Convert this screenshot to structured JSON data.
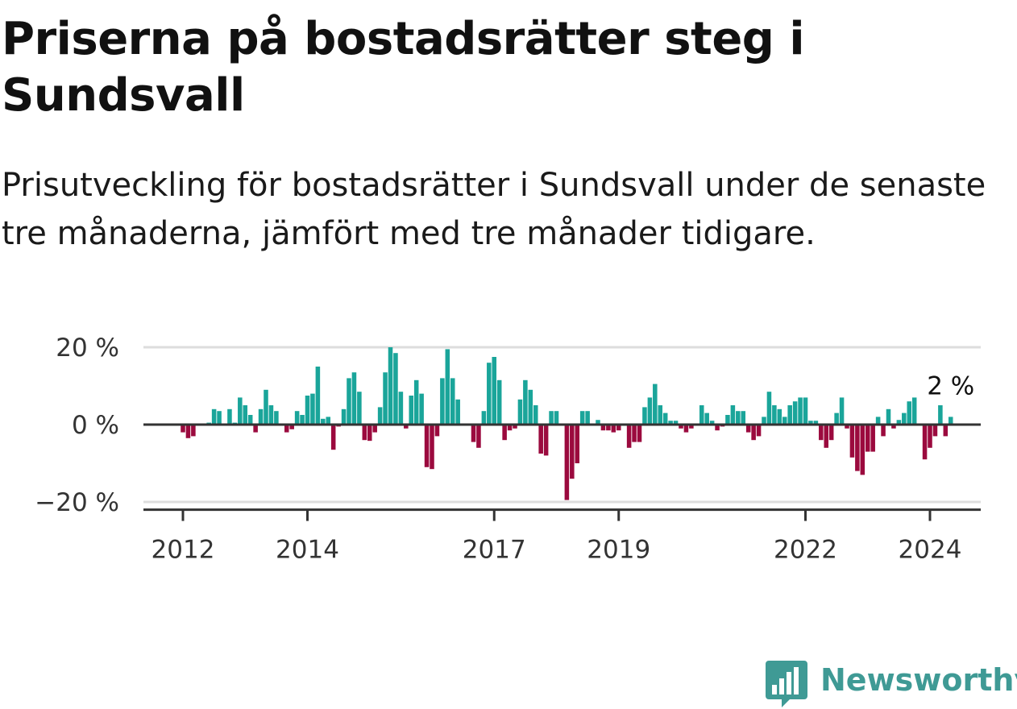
{
  "title": "Priserna på bostadsrätter steg i Sundsvall",
  "subtitle": "Prisutveckling för bostadsrätter i Sundsvall under de senaste tre månaderna, jämfört med tre månader tidigare.",
  "logo": {
    "name": "Newsworthy",
    "icon": "bar-chart-speech-bubble-icon"
  },
  "chart_data": {
    "type": "bar",
    "ylabel": "",
    "xlabel": "",
    "ylim": [
      -22,
      20
    ],
    "yticks": [
      {
        "value": 20,
        "label": "20 %"
      },
      {
        "value": 0,
        "label": "0 %"
      },
      {
        "value": -20,
        "label": "−20 %"
      }
    ],
    "xticks": [
      {
        "value": 2012,
        "label": "2012"
      },
      {
        "value": 2014,
        "label": "2014"
      },
      {
        "value": 2017,
        "label": "2017"
      },
      {
        "value": 2019,
        "label": "2019"
      },
      {
        "value": 2022,
        "label": "2022"
      },
      {
        "value": 2024,
        "label": "2024"
      }
    ],
    "grid": true,
    "colors": {
      "positive": "#1aa59a",
      "negative": "#9b0a3e",
      "grid": "#dddddd",
      "axis": "#333333"
    },
    "last_value_label": "2 %",
    "series": [
      {
        "start": "2012-01",
        "values": [
          -2,
          -3.5,
          -3,
          0,
          0,
          0.5,
          4,
          3.5,
          0,
          4,
          0.5,
          7,
          5,
          2.5,
          -2,
          4,
          9,
          5,
          3.5,
          0,
          -2,
          -1.2,
          3.5,
          2.5,
          7.5,
          8,
          15,
          1.5,
          2,
          -6.5,
          -0.5,
          4,
          12,
          13.5,
          8.5,
          -4,
          -4.2,
          -2,
          4.5,
          13.5,
          20,
          18.5,
          8.5,
          -1,
          7.5,
          11.5,
          8,
          -11,
          -11.5,
          -3,
          12,
          19.5,
          12,
          6.5,
          0,
          0,
          -4.5,
          -6,
          3.5,
          16,
          17.5,
          11.5,
          -4,
          -1.5,
          -1,
          6.5,
          11.5,
          9,
          5,
          -7.5,
          -8,
          3.5,
          3.5,
          0,
          -19.5,
          -14,
          -10,
          3.5,
          3.5,
          0,
          1.2,
          -1.5,
          -1.5,
          -2,
          -1.5,
          0,
          -6,
          -4.5,
          -4.5,
          4.5,
          7,
          10.5,
          5,
          3,
          1,
          1,
          -1,
          -2,
          -1,
          0,
          5,
          3,
          1,
          -1.5,
          -0.5,
          2.5,
          5,
          3.5,
          3.5,
          -2,
          -4,
          -3,
          2,
          8.5,
          5,
          4,
          2,
          5,
          6,
          7,
          7,
          1,
          1,
          -4,
          -6,
          -4,
          3,
          7,
          -1,
          -8.5,
          -12,
          -13,
          -7,
          -7,
          2,
          -3,
          4,
          -1,
          1.2,
          3,
          6,
          7,
          0,
          -9,
          -6,
          -3,
          5,
          -3,
          2
        ]
      }
    ]
  }
}
